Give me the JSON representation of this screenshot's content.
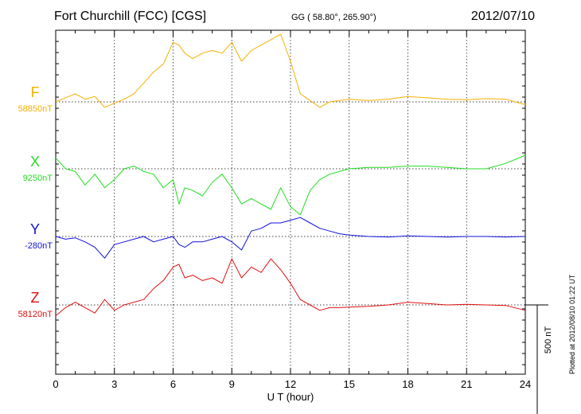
{
  "header": {
    "title": "Fort Churchill (FCC)  [CGS]",
    "coords": "GG ( 58.80°, 265.90°)",
    "date": "2012/07/10"
  },
  "plotted_note": "Plotted at 2012/08/10 01:22 UT",
  "colors": {
    "F": "#f5b000",
    "X": "#22dd22",
    "Y": "#1010dd",
    "Z": "#e01010",
    "grid": "#000000"
  },
  "chart_data": {
    "type": "line",
    "xlabel": "U T (hour)",
    "xlim": [
      0,
      24
    ],
    "xticks": [
      "0",
      "3",
      "6",
      "9",
      "12",
      "15",
      "18",
      "21",
      "24"
    ],
    "scale_bar_label": "500 nT",
    "scale_bar_nT": 500,
    "series": [
      {
        "name": "F",
        "baseline_label": "58850nT",
        "x": [
          0,
          0.5,
          1,
          1.5,
          2,
          2.5,
          3,
          3.5,
          4,
          4.5,
          5,
          5.5,
          6,
          6.3,
          6.6,
          7,
          7.5,
          8,
          8.5,
          9,
          9.5,
          10,
          10.5,
          11,
          11.5,
          12,
          12.5,
          13,
          13.5,
          14,
          14.5,
          15,
          16,
          17,
          18,
          19,
          20,
          21,
          22,
          23,
          24
        ],
        "y": [
          58850,
          58865,
          58880,
          58860,
          58870,
          58830,
          58845,
          58860,
          58880,
          58920,
          58960,
          58990,
          59070,
          59060,
          59030,
          59010,
          59030,
          59040,
          59030,
          59070,
          59000,
          59040,
          59060,
          59080,
          59100,
          59000,
          58880,
          58855,
          58830,
          58850,
          58855,
          58860,
          58855,
          58860,
          58870,
          58865,
          58860,
          58858,
          58862,
          58860,
          58840
        ]
      },
      {
        "name": "X",
        "baseline_label": "9250nT",
        "x": [
          0,
          0.5,
          1,
          1.5,
          2,
          2.5,
          3,
          3.5,
          4,
          4.5,
          5,
          5.5,
          6,
          6.3,
          6.6,
          7,
          7.5,
          8,
          8.5,
          9,
          9.5,
          10,
          10.5,
          11,
          11.5,
          12,
          12.5,
          13,
          13.5,
          14,
          14.5,
          15,
          16,
          17,
          18,
          19,
          20,
          21,
          22,
          23,
          24
        ],
        "y": [
          9290,
          9250,
          9240,
          9190,
          9230,
          9180,
          9210,
          9250,
          9260,
          9240,
          9230,
          9180,
          9210,
          9120,
          9180,
          9170,
          9150,
          9200,
          9230,
          9180,
          9120,
          9140,
          9120,
          9100,
          9180,
          9110,
          9080,
          9170,
          9210,
          9230,
          9240,
          9250,
          9255,
          9255,
          9260,
          9260,
          9255,
          9250,
          9250,
          9270,
          9300
        ]
      },
      {
        "name": "Y",
        "baseline_label": "-280nT",
        "x": [
          0,
          0.5,
          1,
          1.5,
          2,
          2.5,
          3,
          3.5,
          4,
          4.5,
          5,
          5.5,
          6,
          6.3,
          6.6,
          7,
          7.5,
          8,
          8.5,
          9,
          9.5,
          10,
          10.5,
          11,
          11.5,
          12,
          12.5,
          13,
          13.5,
          14,
          14.5,
          15,
          16,
          17,
          18,
          19,
          20,
          21,
          22,
          23,
          24
        ],
        "y": [
          -280,
          -290,
          -285,
          -300,
          -320,
          -360,
          -310,
          -300,
          -290,
          -280,
          -300,
          -290,
          -280,
          -310,
          -320,
          -300,
          -300,
          -290,
          -280,
          -300,
          -330,
          -260,
          -250,
          -230,
          -230,
          -220,
          -210,
          -230,
          -250,
          -260,
          -270,
          -275,
          -280,
          -282,
          -278,
          -280,
          -282,
          -280,
          -280,
          -282,
          -280
        ]
      },
      {
        "name": "Z",
        "baseline_label": "58120nT",
        "x": [
          0,
          0.5,
          1,
          1.5,
          2,
          2.5,
          3,
          3.5,
          4,
          4.5,
          5,
          5.5,
          6,
          6.3,
          6.6,
          7,
          7.5,
          8,
          8.5,
          9,
          9.5,
          10,
          10.5,
          11,
          11.5,
          12,
          12.5,
          13,
          13.5,
          14,
          14.5,
          15,
          16,
          17,
          18,
          19,
          20,
          21,
          22,
          23,
          24
        ],
        "y": [
          58080,
          58110,
          58130,
          58110,
          58090,
          58140,
          58100,
          58120,
          58130,
          58140,
          58180,
          58210,
          58260,
          58270,
          58220,
          58230,
          58210,
          58220,
          58200,
          58290,
          58220,
          58260,
          58240,
          58290,
          58250,
          58200,
          58140,
          58120,
          58100,
          58110,
          58110,
          58112,
          58115,
          58120,
          58130,
          58125,
          58120,
          58122,
          58120,
          58118,
          58100
        ]
      }
    ]
  }
}
